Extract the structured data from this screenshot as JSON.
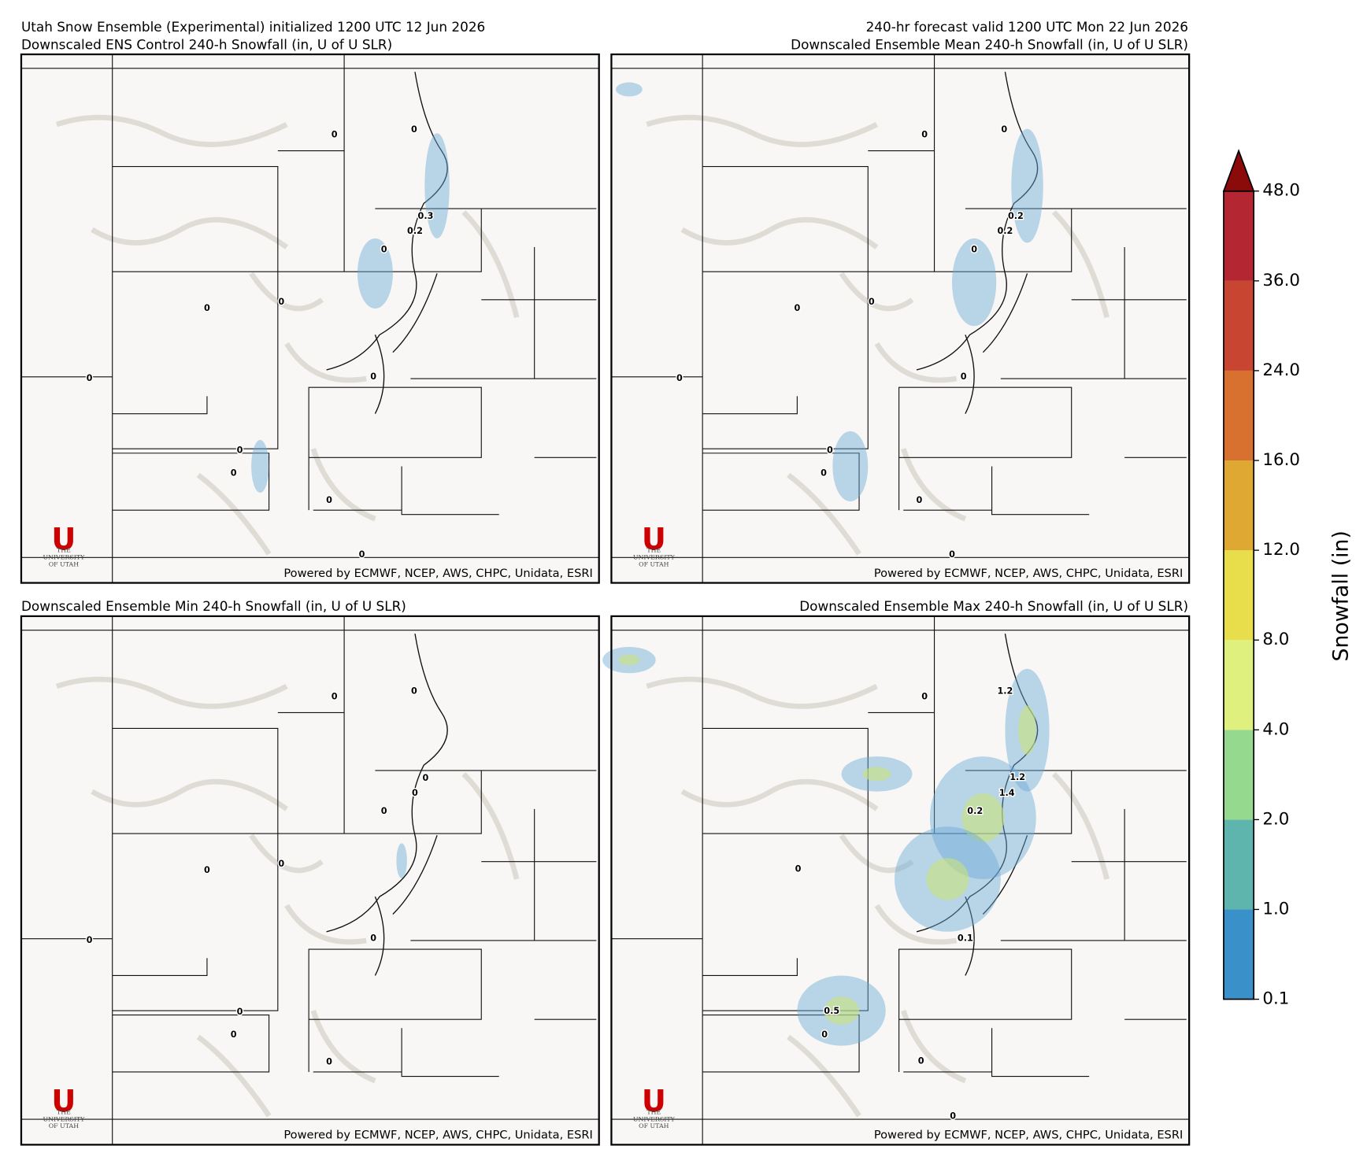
{
  "header": {
    "info_left": "Utah Snow Ensemble (Experimental) initialized 1200 UTC 12 Jun 2026",
    "info_right": "240-hr forecast valid 1200 UTC Mon 22 Jun 2026"
  },
  "panels": [
    {
      "title": "Downscaled ENS Control 240-h Snowfall (in, U of U SLR)",
      "contour_labels": [
        "0",
        "0",
        "0.3",
        "0.2",
        "0",
        "0",
        "0",
        "0",
        "0",
        "0",
        "0",
        "0",
        "0"
      ]
    },
    {
      "title": "Downscaled Ensemble Mean 240-h Snowfall (in, U of U SLR)",
      "contour_labels": [
        "0",
        "0",
        "0.2",
        "0.2",
        "0",
        "0",
        "0",
        "0",
        "0",
        "0",
        "0",
        "0",
        "0"
      ]
    },
    {
      "title": "Downscaled Ensemble Min 240-h Snowfall (in, U of U SLR)",
      "contour_labels": [
        "0",
        "0",
        "0",
        "0",
        "0",
        "0",
        "0",
        "0",
        "0",
        "0",
        "0",
        "0"
      ]
    },
    {
      "title": "Downscaled Ensemble Max 240-h Snowfall (in, U of U SLR)",
      "contour_labels": [
        "1.2",
        "0",
        "1.2",
        "1.4",
        "0.2",
        "0",
        "0.1",
        "0.5",
        "0",
        "0",
        "0"
      ]
    }
  ],
  "logo": {
    "mark": "U",
    "lines": [
      "THE",
      "UNIVERSITY",
      "OF UTAH"
    ]
  },
  "credit": "Powered by ECMWF, NCEP, AWS, CHPC, Unidata, ESRI",
  "colorbar": {
    "label": "Snowfall (in)",
    "ticks": [
      {
        "value": 0.1,
        "label": "0.1"
      },
      {
        "value": 1,
        "label": "1.0"
      },
      {
        "value": 2,
        "label": "2.0"
      },
      {
        "value": 4,
        "label": "4.0"
      },
      {
        "value": 8,
        "label": "8.0"
      },
      {
        "value": 12,
        "label": "12.0"
      },
      {
        "value": 16,
        "label": "16.0"
      },
      {
        "value": 24,
        "label": "24.0"
      },
      {
        "value": 36,
        "label": "36.0"
      },
      {
        "value": 48,
        "label": "48.0"
      }
    ],
    "colors": [
      "#3a90c8",
      "#5db5ad",
      "#94d98e",
      "#dff07e",
      "#e8dd4a",
      "#dfa832",
      "#d8702f",
      "#c84631",
      "#b32632"
    ],
    "extend_color": "#8b0a0a"
  }
}
